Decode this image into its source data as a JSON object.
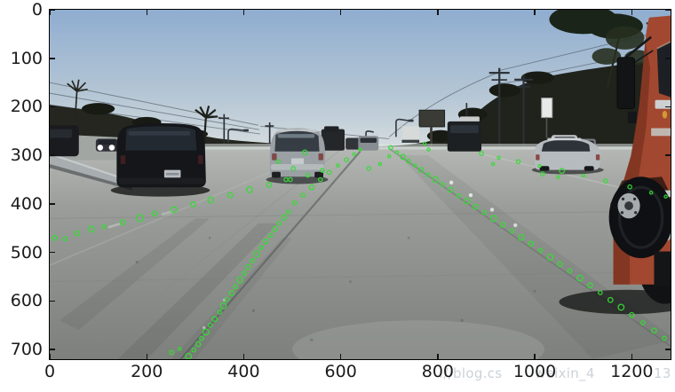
{
  "figure": {
    "background": "#ffffff",
    "axis": {
      "tick_color": "#1b1b1b",
      "frame_color": "#000000"
    },
    "watermark": {
      "color": "#ccd2d8",
      "parts": [
        "://blog.cs",
        "weixin_4",
        "13"
      ]
    }
  },
  "chart_data": {
    "type": "scatter",
    "title": "",
    "xlabel": "",
    "ylabel": "",
    "xlim": [
      0,
      1280
    ],
    "ylim": [
      720,
      0
    ],
    "x_ticks": [
      0,
      200,
      400,
      600,
      800,
      1000,
      1200
    ],
    "y_ticks": [
      0,
      100,
      200,
      300,
      400,
      500,
      600,
      700
    ],
    "grid": false,
    "legend": null,
    "marker": {
      "shape": "circle-outline",
      "color": "#33dd33"
    },
    "image_description": "Dashcam photo of a multi-lane freeway: dark SUV at left, gray SUV in center lane, silver sedan and orange semi truck at right, hills, palm trees and power lines on the horizon; green feature points trace the lane lines toward the vanishing point.",
    "series": [
      {
        "name": "lane-feature-points",
        "points": [
          [
            10,
            470,
            5
          ],
          [
            32,
            472,
            4
          ],
          [
            56,
            461,
            5
          ],
          [
            86,
            452,
            6
          ],
          [
            112,
            447,
            4
          ],
          [
            150,
            438,
            5
          ],
          [
            186,
            429,
            7
          ],
          [
            216,
            420,
            5
          ],
          [
            256,
            412,
            6
          ],
          [
            296,
            401,
            5
          ],
          [
            332,
            392,
            6
          ],
          [
            372,
            382,
            5
          ],
          [
            412,
            371,
            6
          ],
          [
            452,
            361,
            5
          ],
          [
            496,
            350,
            4
          ],
          [
            532,
            341,
            4
          ],
          [
            562,
            331,
            4
          ],
          [
            251,
            706,
            4
          ],
          [
            268,
            699,
            3
          ],
          [
            286,
            714,
            6
          ],
          [
            297,
            701,
            4
          ],
          [
            306,
            689,
            5
          ],
          [
            313,
            677,
            4
          ],
          [
            322,
            664,
            6
          ],
          [
            331,
            650,
            4
          ],
          [
            340,
            637,
            5
          ],
          [
            350,
            623,
            4
          ],
          [
            358,
            610,
            6
          ],
          [
            366,
            597,
            4
          ],
          [
            375,
            584,
            5
          ],
          [
            383,
            571,
            4
          ],
          [
            392,
            557,
            6
          ],
          [
            401,
            543,
            4
          ],
          [
            409,
            530,
            5
          ],
          [
            418,
            517,
            4
          ],
          [
            427,
            503,
            6
          ],
          [
            436,
            490,
            4
          ],
          [
            445,
            477,
            5
          ],
          [
            455,
            465,
            4
          ],
          [
            464,
            452,
            5
          ],
          [
            473,
            440,
            4
          ],
          [
            483,
            428,
            5
          ],
          [
            492,
            417,
            4
          ],
          [
            505,
            398,
            4
          ],
          [
            522,
            382,
            4
          ],
          [
            540,
            366,
            5
          ],
          [
            558,
            350,
            4
          ],
          [
            576,
            335,
            4
          ],
          [
            594,
            321,
            3
          ],
          [
            612,
            309,
            4
          ],
          [
            628,
            298,
            3
          ],
          [
            703,
            284,
            4
          ],
          [
            716,
            294,
            3
          ],
          [
            728,
            303,
            5
          ],
          [
            740,
            312,
            4
          ],
          [
            753,
            321,
            3
          ],
          [
            766,
            330,
            5
          ],
          [
            780,
            340,
            4
          ],
          [
            795,
            350,
            6
          ],
          [
            810,
            360,
            4
          ],
          [
            826,
            371,
            5
          ],
          [
            843,
            383,
            4
          ],
          [
            860,
            394,
            6
          ],
          [
            878,
            406,
            5
          ],
          [
            896,
            418,
            4
          ],
          [
            915,
            430,
            6
          ],
          [
            934,
            443,
            5
          ],
          [
            953,
            456,
            4
          ],
          [
            972,
            469,
            6
          ],
          [
            992,
            482,
            5
          ],
          [
            1012,
            496,
            4
          ],
          [
            1032,
            510,
            6
          ],
          [
            1052,
            524,
            5
          ],
          [
            1072,
            538,
            4
          ],
          [
            1093,
            553,
            6
          ],
          [
            1114,
            568,
            5
          ],
          [
            1135,
            583,
            4
          ],
          [
            1156,
            598,
            5
          ],
          [
            1178,
            613,
            6
          ],
          [
            1200,
            629,
            5
          ],
          [
            1223,
            645,
            4
          ],
          [
            1246,
            661,
            5
          ],
          [
            1267,
            677,
            4
          ],
          [
            890,
            296,
            4
          ],
          [
            926,
            305,
            3
          ],
          [
            966,
            313,
            4
          ],
          [
            1010,
            322,
            3
          ],
          [
            1056,
            332,
            5
          ],
          [
            1100,
            342,
            3
          ],
          [
            1146,
            353,
            4
          ],
          [
            1196,
            365,
            4
          ],
          [
            1240,
            377,
            3
          ],
          [
            1270,
            385,
            3
          ],
          [
            471,
            313,
            4
          ],
          [
            526,
            294,
            5
          ],
          [
            502,
            327,
            4
          ],
          [
            487,
            350,
            4
          ],
          [
            658,
            327,
            4
          ],
          [
            681,
            318,
            3
          ],
          [
            700,
            302,
            3
          ],
          [
            773,
            276,
            3
          ],
          [
            781,
            288,
            3
          ],
          [
            914,
            318,
            3
          ],
          [
            1016,
            338,
            4
          ],
          [
            1048,
            345,
            3
          ],
          [
            640,
            288,
            3
          ]
        ]
      }
    ]
  }
}
